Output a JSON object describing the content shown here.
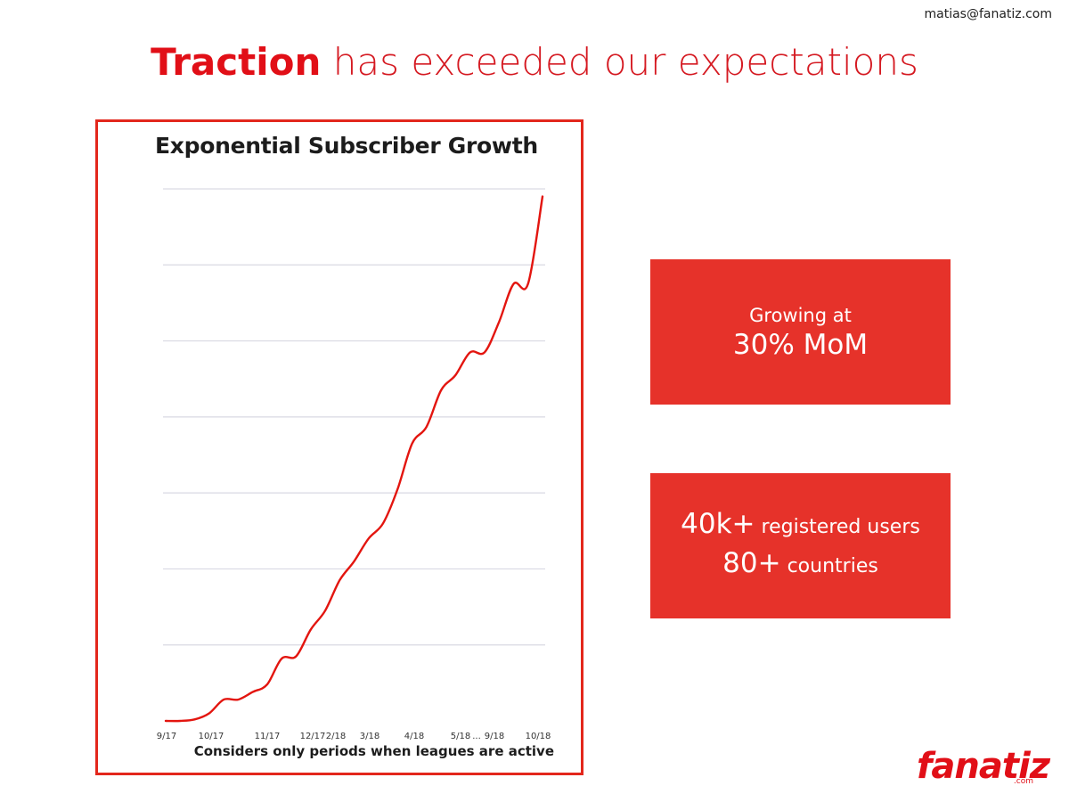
{
  "header": {
    "email": "matias@fanatiz.com",
    "headline_strong": "Traction",
    "headline_rest": " has exceeded our expectations"
  },
  "chart_data": {
    "type": "line",
    "title": "Exponential Subscriber Growth",
    "xlabel": "",
    "ylabel": "",
    "note": "Considers only periods when leagues are active",
    "x_ticks": [
      "9/17",
      "10/17",
      "11/17",
      "12/17",
      "2/18",
      "3/18",
      "4/18",
      "5/18",
      "...",
      "9/18",
      "10/18"
    ],
    "ylim": [
      0,
      7
    ],
    "grid": true,
    "series_color": "#e3150f",
    "series": [
      {
        "values": [
          0.0,
          0.0,
          0.02,
          0.1,
          0.28,
          0.28,
          0.38,
          0.48,
          0.82,
          0.85,
          1.2,
          1.45,
          1.85,
          2.1,
          2.4,
          2.6,
          3.05,
          3.65,
          3.87,
          4.35,
          4.55,
          4.85,
          4.85,
          5.25,
          5.75,
          5.75,
          6.9
        ]
      }
    ]
  },
  "stats": {
    "box1_small": "Growing at",
    "box1_big": "30% MoM",
    "box2_line1_big": "40k+",
    "box2_line1_small": " registered users",
    "box2_line2_big": "80+",
    "box2_line2_small": " countries"
  },
  "brand": {
    "logo": "fanatiz",
    "logo_sub": ".com",
    "color": "#e10f17"
  }
}
